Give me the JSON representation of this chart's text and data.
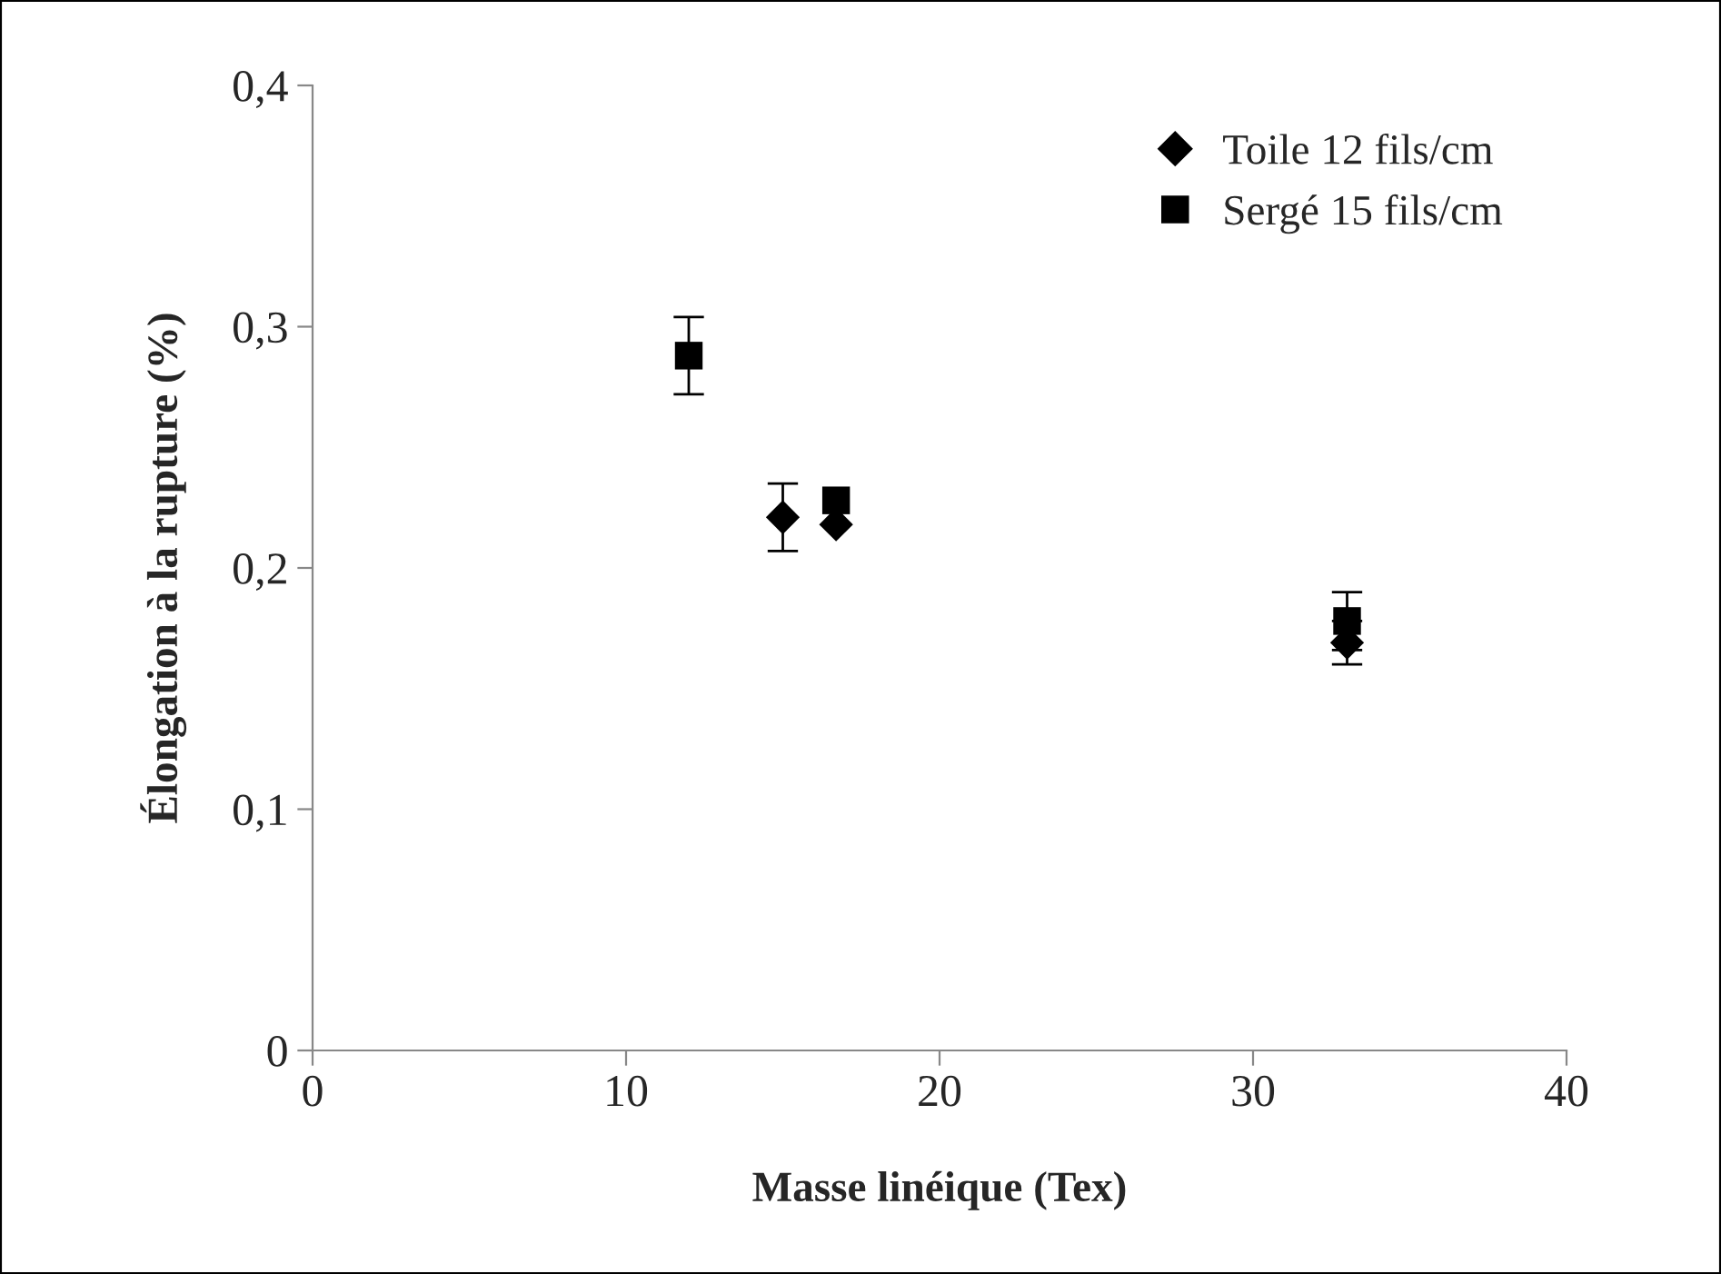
{
  "chart_data": {
    "type": "scatter",
    "xlabel": "Masse linéique (Tex)",
    "ylabel": "Élongation à la rupture (%)",
    "xlim": [
      0,
      40
    ],
    "xticks": [
      0,
      10,
      20,
      30,
      40
    ],
    "ylim": [
      0,
      0.4
    ],
    "yticks": [
      {
        "value": 0,
        "label": "0"
      },
      {
        "value": 0.1,
        "label": "0,1"
      },
      {
        "value": 0.2,
        "label": "0,2"
      },
      {
        "value": 0.3,
        "label": "0,3"
      },
      {
        "value": 0.4,
        "label": "0,4"
      }
    ],
    "grid": false,
    "legend": "top right",
    "series": [
      {
        "name": "Toile 12 fils/cm",
        "color": "#000000",
        "marker": "diamond",
        "x": [
          15,
          16.7,
          33
        ],
        "values": [
          0.221,
          0.218,
          0.169
        ],
        "errors": [
          0.014,
          null,
          0.009
        ]
      },
      {
        "name": "Sergé 15 fils/cm",
        "color": "#000000",
        "marker": "square",
        "x": [
          12,
          16.7,
          33
        ],
        "values": [
          0.288,
          0.228,
          0.178
        ],
        "errors": [
          0.016,
          null,
          0.012
        ]
      }
    ]
  }
}
